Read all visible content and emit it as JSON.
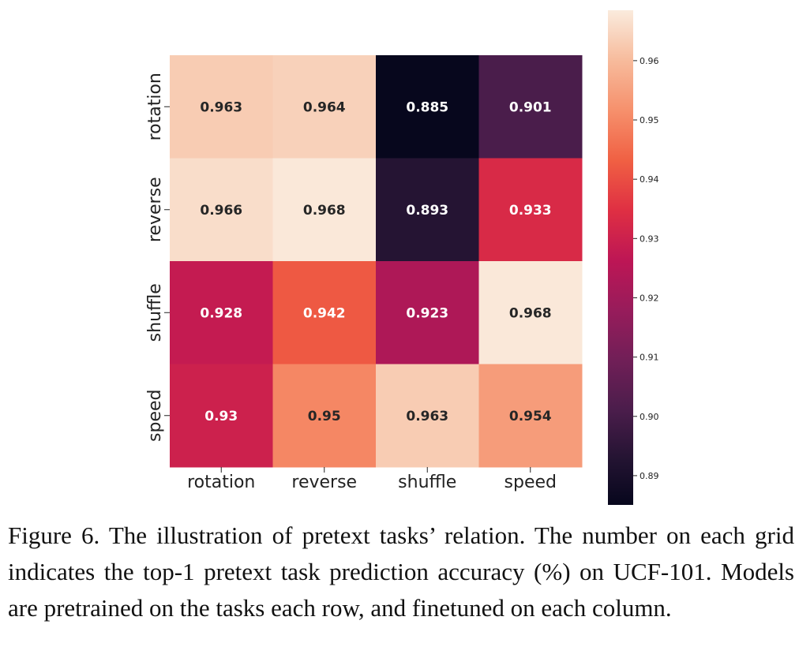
{
  "chart_data": {
    "type": "heatmap",
    "title": "",
    "xlabel": "",
    "ylabel": "",
    "rows": [
      "rotation",
      "reverse",
      "shuffle",
      "speed"
    ],
    "columns": [
      "rotation",
      "reverse",
      "shuffle",
      "speed"
    ],
    "values": [
      [
        0.963,
        0.964,
        0.885,
        0.901
      ],
      [
        0.966,
        0.968,
        0.893,
        0.933
      ],
      [
        0.928,
        0.942,
        0.923,
        0.968
      ],
      [
        0.93,
        0.95,
        0.963,
        0.954
      ]
    ],
    "value_labels": [
      [
        "0.963",
        "0.964",
        "0.885",
        "0.901"
      ],
      [
        "0.966",
        "0.968",
        "0.893",
        "0.933"
      ],
      [
        "0.928",
        "0.942",
        "0.923",
        "0.968"
      ],
      [
        "0.93",
        "0.95",
        "0.963",
        "0.954"
      ]
    ],
    "colorbar": {
      "range": [
        0.884,
        0.9685
      ],
      "ticks": [
        0.89,
        0.9,
        0.91,
        0.92,
        0.93,
        0.94,
        0.95,
        0.96
      ],
      "tick_labels": [
        "0.89",
        "0.90",
        "0.91",
        "0.92",
        "0.93",
        "0.94",
        "0.95",
        "0.96"
      ],
      "colormap": "rocket"
    },
    "colormap_stops": [
      [
        0.0,
        "#03051a"
      ],
      [
        0.1,
        "#221331"
      ],
      [
        0.2,
        "#4a1d4b"
      ],
      [
        0.3,
        "#701f57"
      ],
      [
        0.4,
        "#971c5b"
      ],
      [
        0.5,
        "#bd1655"
      ],
      [
        0.6,
        "#df2f43"
      ],
      [
        0.7,
        "#f06043"
      ],
      [
        0.8,
        "#f6906c"
      ],
      [
        0.9,
        "#f7bb9c"
      ],
      [
        1.0,
        "#faebdd"
      ]
    ],
    "text_colors": {
      "light": "#ffffff",
      "dark": "#262626"
    }
  },
  "caption": "Figure 6. The illustration of pretext tasks’ relation. The number on each grid indicates the top-1 pretext task prediction accuracy (%) on UCF-101.  Models are pretrained on the tasks each row, and finetuned on each column."
}
